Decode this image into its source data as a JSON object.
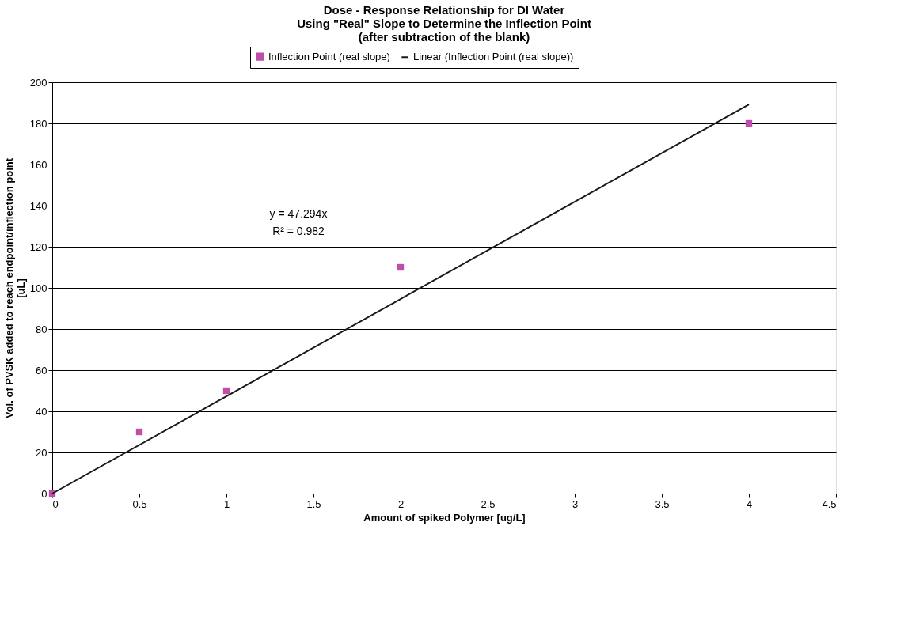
{
  "chart_data": {
    "type": "scatter",
    "title": "Dose - Response Relationship for DI Water\nUsing \"Real\" Slope to Determine the Inflection Point\n(after subtraction of the blank)",
    "xlabel": "Amount of spiked Polymer [ug/L]",
    "ylabel": "Vol. of PVSK added to reach endpoint/inflection point\n[uL]",
    "x": [
      0,
      0.5,
      1,
      2,
      4
    ],
    "series": [
      {
        "name": "Inflection Point (real slope)",
        "color": "#c04ea8",
        "marker": "square",
        "values": [
          0,
          30,
          50,
          110,
          180
        ]
      },
      {
        "name": "Linear (Inflection Point (real slope))",
        "type": "line",
        "color": "#1a1a1a",
        "marker": "none",
        "line_style": "solid",
        "x": [
          0,
          4
        ],
        "values": [
          0,
          189.2
        ]
      }
    ],
    "xlim": [
      0,
      4.5
    ],
    "xticks": [
      0,
      0.5,
      1,
      1.5,
      2,
      2.5,
      3,
      3.5,
      4,
      4.5
    ],
    "ylim": [
      0,
      200
    ],
    "yticks": [
      0,
      20,
      40,
      60,
      80,
      100,
      120,
      140,
      160,
      180,
      200
    ],
    "grid": "y",
    "legend": "top",
    "annotations": [
      "y = 47.294x\nR² = 0.982"
    ]
  }
}
